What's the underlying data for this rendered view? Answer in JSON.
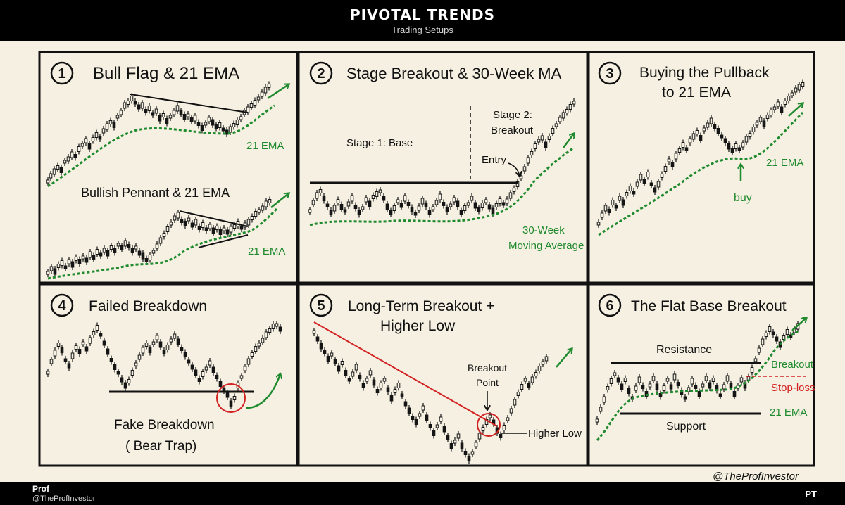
{
  "header": {
    "title": "PIVOTAL TRENDS",
    "subtitle": "Trading Setups"
  },
  "footer": {
    "author": "Prof",
    "handle": "@TheProfInvestor",
    "logo_text": "PT"
  },
  "watermark": "@TheProfInvestor",
  "colors": {
    "candle": "#151515",
    "ema": "#1f8a2e",
    "accent": "#d22222",
    "paper": "#f5f0e1"
  },
  "panels": [
    {
      "number": "1",
      "title": "Bull Flag & 21 EMA",
      "subtitle": "Bullish Pennant & 21 EMA",
      "ema_label_top": "21 EMA",
      "ema_label_bottom": "21 EMA"
    },
    {
      "number": "2",
      "title": "Stage Breakout & 30-Week MA",
      "stage1": "Stage 1: Base",
      "stage2_line1": "Stage 2:",
      "stage2_line2": "Breakout",
      "entry": "Entry",
      "ma_line1": "30-Week",
      "ma_line2": "Moving Average"
    },
    {
      "number": "3",
      "title_line1": "Buying the Pullback",
      "title_line2": "to 21 EMA",
      "ema_label": "21 EMA",
      "buy": "buy"
    },
    {
      "number": "4",
      "title": "Failed Breakdown",
      "caption_line1": "Fake Breakdown",
      "caption_line2": "( Bear Trap)"
    },
    {
      "number": "5",
      "title_line1": "Long-Term Breakout +",
      "title_line2": "Higher Low",
      "breakout_line1": "Breakout",
      "breakout_line2": "Point",
      "higher_low": "Higher Low"
    },
    {
      "number": "6",
      "title": "The Flat Base Breakout",
      "resistance": "Resistance",
      "support": "Support",
      "breakout": "Breakout",
      "stop_loss": "Stop-loss",
      "ema_label": "21 EMA"
    }
  ]
}
